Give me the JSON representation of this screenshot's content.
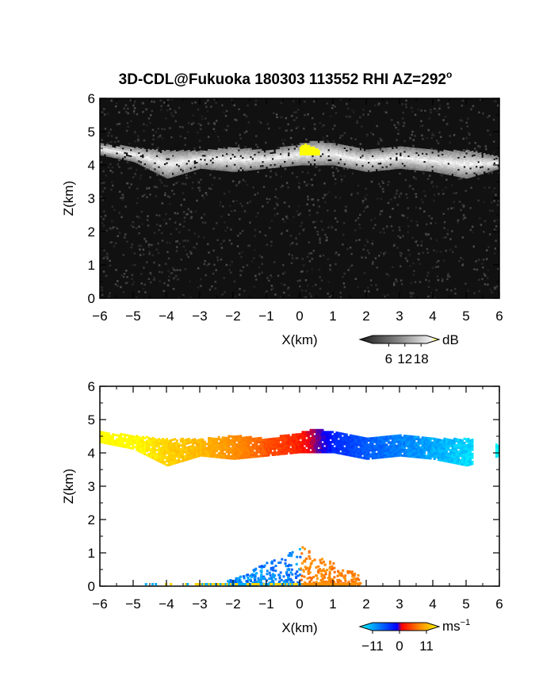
{
  "title": "3D-CDL@Fukuoka 180303 113552 RHI AZ=292",
  "title_superscript": "o",
  "colors": {
    "background": "#ffffff",
    "axis": "#000000",
    "reflectivity_highlight": "#ffff00",
    "velocity_scale": [
      "#00ffff",
      "#0066ff",
      "#0000ff",
      "#ff0000",
      "#ff6600",
      "#ffaa00",
      "#ffff00"
    ]
  },
  "chart_data": [
    {
      "type": "heatmap",
      "panel": "reflectivity",
      "xlabel": "X(km)",
      "ylabel": "Z(km)",
      "xlim": [
        -6,
        6
      ],
      "ylim": [
        0,
        6
      ],
      "xticks": [
        "−6",
        "−5",
        "−4",
        "−3",
        "−2",
        "−1",
        "0",
        "1",
        "2",
        "3",
        "4",
        "5",
        "6"
      ],
      "yticks": [
        "0",
        "1",
        "2",
        "3",
        "4",
        "5",
        "6"
      ],
      "grid": false,
      "cloud_layer": {
        "x": [
          -6,
          -5,
          -4,
          -3,
          -2,
          -1,
          0,
          0.5,
          1,
          2,
          3,
          4,
          5,
          6
        ],
        "base_km": [
          4.3,
          4.1,
          3.6,
          3.9,
          3.8,
          3.9,
          4.0,
          4.0,
          4.0,
          3.8,
          3.9,
          3.8,
          3.6,
          3.9
        ],
        "top_km": [
          4.6,
          4.5,
          4.4,
          4.4,
          4.5,
          4.4,
          4.6,
          4.7,
          4.6,
          4.4,
          4.5,
          4.4,
          4.4,
          4.2
        ]
      },
      "strong_echo": {
        "x_range_km": [
          0.0,
          0.6
        ],
        "z_range_km": [
          4.3,
          4.6
        ],
        "value": "> 18 dB"
      },
      "colorbar": {
        "unit": "dB",
        "ticks": [
          "6",
          "12",
          "18"
        ],
        "range": [
          0,
          20
        ],
        "palette": "grayscale"
      }
    },
    {
      "type": "heatmap",
      "panel": "doppler_velocity",
      "xlabel": "X(km)",
      "ylabel": "Z(km)",
      "xlim": [
        -6,
        6
      ],
      "ylim": [
        0,
        6
      ],
      "xticks": [
        "−6",
        "−5",
        "−4",
        "−3",
        "−2",
        "−1",
        "0",
        "1",
        "2",
        "3",
        "4",
        "5",
        "6"
      ],
      "yticks": [
        "0",
        "1",
        "2",
        "3",
        "4",
        "5",
        "6"
      ],
      "grid": false,
      "cloud_layer": {
        "x": [
          -6,
          -5,
          -4,
          -3,
          -2,
          -1,
          0,
          0.5,
          1,
          2,
          3,
          4,
          5,
          6
        ],
        "base_km": [
          4.3,
          4.1,
          3.6,
          3.9,
          3.8,
          3.9,
          4.0,
          4.0,
          4.0,
          3.8,
          3.9,
          3.8,
          3.6,
          3.9
        ],
        "top_km": [
          4.6,
          4.5,
          4.4,
          4.4,
          4.5,
          4.4,
          4.6,
          4.7,
          4.6,
          4.4,
          4.5,
          4.4,
          4.4,
          4.2
        ],
        "velocity_ms": [
          11,
          11,
          9,
          8,
          6,
          3,
          1,
          -2,
          -5,
          -7,
          -8,
          -9,
          -10,
          -11
        ]
      },
      "near_ground": {
        "negative_x_range_km": [
          -2.2,
          0.0
        ],
        "positive_x_range_km": [
          0.0,
          1.8
        ],
        "max_height_km": 1.2,
        "negative_side_velocity_ms": -8,
        "positive_side_velocity_ms": 5
      },
      "colorbar": {
        "unit": "ms",
        "unit_superscript": "−1",
        "ticks": [
          "−11",
          "0",
          "11"
        ],
        "range": [
          -11,
          11
        ]
      }
    }
  ]
}
